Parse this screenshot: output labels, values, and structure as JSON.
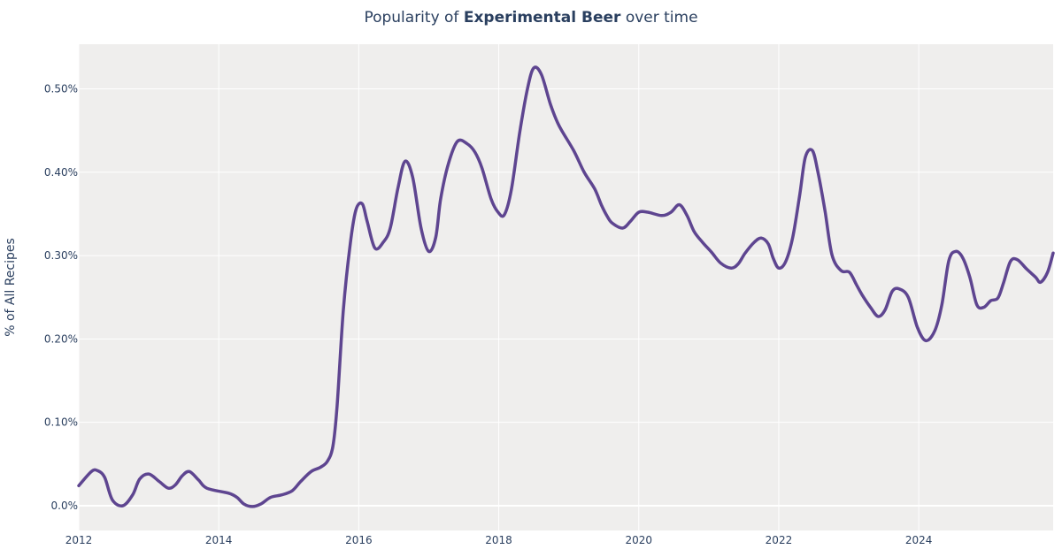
{
  "chart_data": {
    "type": "line",
    "title_prefix": "Popularity of ",
    "title_bold": "Experimental Beer",
    "title_suffix": " over time",
    "xlabel": "",
    "ylabel": "% of All Recipes",
    "xlim": [
      2012,
      2025.92
    ],
    "ylim": [
      -0.0297,
      0.5535
    ],
    "grid": true,
    "x_ticks": [
      2012,
      2014,
      2016,
      2018,
      2020,
      2022,
      2024
    ],
    "x_tick_labels": [
      "2012",
      "2014",
      "2016",
      "2018",
      "2020",
      "2022",
      "2024"
    ],
    "y_ticks": [
      0,
      0.1,
      0.2,
      0.3,
      0.4,
      0.5
    ],
    "y_tick_labels": [
      "0.0%",
      "0.10%",
      "0.20%",
      "0.30%",
      "0.40%",
      "0.50%"
    ],
    "colors": {
      "line": "#5e4590",
      "plot_bg": "#efeeed",
      "grid": "#ffffff",
      "text": "#2a3f5f"
    },
    "series": [
      {
        "x": [
          2012.0,
          2012.18,
          2012.27,
          2012.37,
          2012.48,
          2012.63,
          2012.77,
          2012.87,
          2013.0,
          2013.15,
          2013.28,
          2013.38,
          2013.48,
          2013.58,
          2013.71,
          2013.83,
          2014.14,
          2014.26,
          2014.36,
          2014.48,
          2014.6,
          2014.74,
          2014.9,
          2015.05,
          2015.17,
          2015.32,
          2015.45,
          2015.55,
          2015.63,
          2015.69,
          2015.78,
          2015.88,
          2015.96,
          2016.05,
          2016.12,
          2016.23,
          2016.35,
          2016.45,
          2016.56,
          2016.66,
          2016.77,
          2016.89,
          2017.0,
          2017.1,
          2017.17,
          2017.28,
          2017.41,
          2017.55,
          2017.66,
          2017.76,
          2017.89,
          2017.99,
          2018.08,
          2018.18,
          2018.3,
          2018.41,
          2018.5,
          2018.61,
          2018.74,
          2018.86,
          2019.07,
          2019.22,
          2019.37,
          2019.47,
          2019.55,
          2019.62,
          2019.77,
          2019.88,
          2020.0,
          2020.13,
          2020.33,
          2020.46,
          2020.58,
          2020.69,
          2020.79,
          2020.91,
          2021.04,
          2021.17,
          2021.32,
          2021.42,
          2021.52,
          2021.65,
          2021.75,
          2021.85,
          2021.92,
          2022.0,
          2022.1,
          2022.2,
          2022.3,
          2022.38,
          2022.48,
          2022.56,
          2022.66,
          2022.76,
          2022.89,
          2023.01,
          2023.11,
          2023.19,
          2023.31,
          2023.42,
          2023.52,
          2023.62,
          2023.72,
          2023.85,
          2023.98,
          2024.1,
          2024.23,
          2024.33,
          2024.43,
          2024.53,
          2024.63,
          2024.73,
          2024.83,
          2024.93,
          2025.03,
          2025.13,
          2025.21,
          2025.31,
          2025.41,
          2025.54,
          2025.67,
          2025.74,
          2025.84,
          2025.92
        ],
        "y": [
          0.024,
          0.041,
          0.042,
          0.034,
          0.007,
          0.0,
          0.013,
          0.032,
          0.038,
          0.029,
          0.021,
          0.025,
          0.036,
          0.041,
          0.031,
          0.021,
          0.015,
          0.01,
          0.002,
          -0.001,
          0.002,
          0.01,
          0.013,
          0.018,
          0.029,
          0.041,
          0.046,
          0.053,
          0.071,
          0.119,
          0.235,
          0.315,
          0.355,
          0.362,
          0.341,
          0.309,
          0.316,
          0.333,
          0.381,
          0.413,
          0.394,
          0.333,
          0.305,
          0.322,
          0.368,
          0.41,
          0.437,
          0.434,
          0.424,
          0.405,
          0.368,
          0.352,
          0.349,
          0.379,
          0.448,
          0.5,
          0.525,
          0.517,
          0.481,
          0.456,
          0.426,
          0.4,
          0.38,
          0.36,
          0.347,
          0.339,
          0.333,
          0.341,
          0.352,
          0.352,
          0.348,
          0.352,
          0.361,
          0.348,
          0.329,
          0.316,
          0.304,
          0.291,
          0.285,
          0.29,
          0.303,
          0.316,
          0.321,
          0.314,
          0.297,
          0.285,
          0.293,
          0.322,
          0.373,
          0.418,
          0.426,
          0.4,
          0.354,
          0.301,
          0.282,
          0.28,
          0.265,
          0.253,
          0.238,
          0.227,
          0.235,
          0.257,
          0.26,
          0.25,
          0.214,
          0.198,
          0.21,
          0.241,
          0.294,
          0.305,
          0.297,
          0.274,
          0.241,
          0.238,
          0.246,
          0.249,
          0.267,
          0.293,
          0.295,
          0.284,
          0.274,
          0.268,
          0.28,
          0.303
        ]
      }
    ]
  }
}
